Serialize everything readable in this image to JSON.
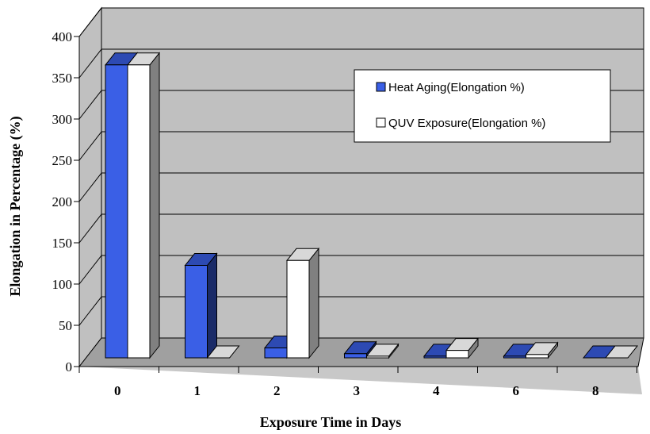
{
  "chart_data": {
    "type": "bar",
    "three_d": true,
    "xlabel": "Exposure Time in Days",
    "ylabel": "Elongation in Percentage (%)",
    "categories": [
      "0",
      "1",
      "2",
      "3",
      "4",
      "6",
      "8"
    ],
    "series": [
      {
        "name": "Heat Aging(Elongation %)",
        "color": "#3a5fe6",
        "values": [
          355,
          112,
          12,
          5,
          2,
          2,
          0
        ]
      },
      {
        "name": "QUV Exposure(Elongation %)",
        "color": "#ffffff",
        "values": [
          355,
          0,
          118,
          2,
          9,
          4,
          0
        ]
      }
    ],
    "ylim": [
      0,
      400
    ],
    "yticks": [
      "0",
      "50",
      "100",
      "150",
      "200",
      "250",
      "300",
      "350",
      "400"
    ],
    "grid": true,
    "legend": "top-right",
    "wall_color": "#c0c0c0",
    "floor_color": "#a0a0a0"
  }
}
